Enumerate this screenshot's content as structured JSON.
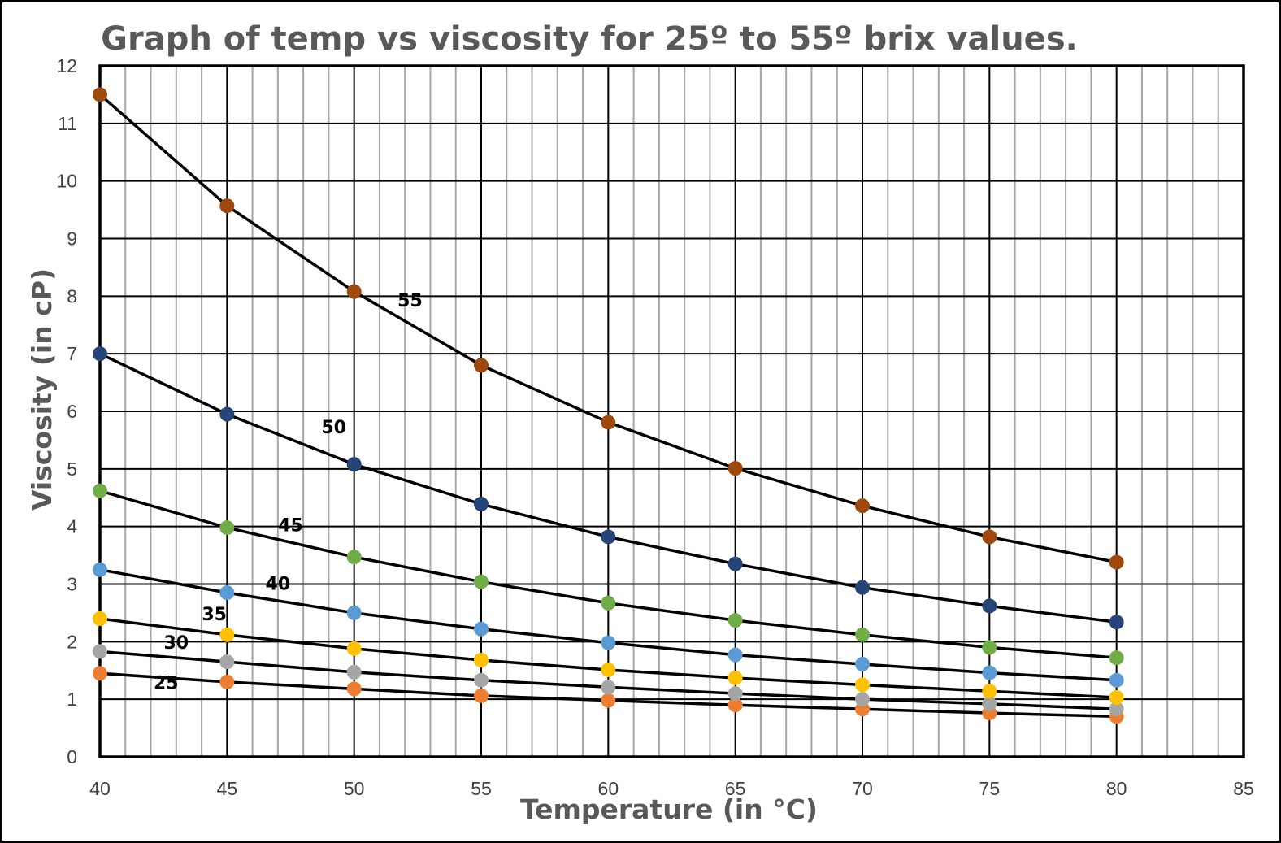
{
  "chart_data": {
    "type": "scatter",
    "title": "Graph of temp vs viscosity for 25º to 55º brix values.",
    "xlabel": "Temperature (in °C)",
    "ylabel": "Viscosity (in cP)",
    "xlim": [
      40,
      85
    ],
    "ylim": [
      0,
      12
    ],
    "x_major_ticks": [
      40,
      45,
      50,
      55,
      60,
      65,
      70,
      75,
      80,
      85
    ],
    "y_major_ticks": [
      0,
      1,
      2,
      3,
      4,
      5,
      6,
      7,
      8,
      9,
      10,
      11,
      12
    ],
    "x_minor_step": 1,
    "grid": "major and minor vertical, major horizontal",
    "legend": "none",
    "line_color": "#000000",
    "x": [
      40,
      45,
      50,
      55,
      60,
      65,
      70,
      75,
      80
    ],
    "series": [
      {
        "name": "25",
        "color": "#ed7d31",
        "values": [
          1.45,
          1.3,
          1.18,
          1.06,
          0.98,
          0.9,
          0.83,
          0.76,
          0.7
        ]
      },
      {
        "name": "30",
        "color": "#a5a5a5",
        "values": [
          1.83,
          1.65,
          1.47,
          1.33,
          1.21,
          1.1,
          1.0,
          0.92,
          0.83
        ]
      },
      {
        "name": "35",
        "color": "#ffc000",
        "values": [
          2.4,
          2.12,
          1.88,
          1.68,
          1.51,
          1.37,
          1.25,
          1.14,
          1.03
        ]
      },
      {
        "name": "40",
        "color": "#5b9bd5",
        "values": [
          3.25,
          2.85,
          2.5,
          2.22,
          1.98,
          1.77,
          1.61,
          1.46,
          1.33
        ]
      },
      {
        "name": "45",
        "color": "#70ad47",
        "values": [
          4.62,
          3.98,
          3.47,
          3.04,
          2.67,
          2.37,
          2.12,
          1.9,
          1.72
        ]
      },
      {
        "name": "50",
        "color": "#264478",
        "values": [
          7.0,
          5.95,
          5.08,
          4.39,
          3.82,
          3.35,
          2.94,
          2.62,
          2.34
        ]
      },
      {
        "name": "55",
        "color": "#9e480e",
        "values": [
          11.5,
          9.57,
          8.08,
          6.8,
          5.81,
          5.01,
          4.36,
          3.82,
          3.38
        ]
      }
    ],
    "series_labels": [
      {
        "text": "25",
        "x": 42.6,
        "y": 1.18
      },
      {
        "text": "30",
        "x": 43.0,
        "y": 1.88
      },
      {
        "text": "35",
        "x": 44.5,
        "y": 2.37
      },
      {
        "text": "40",
        "x": 47.0,
        "y": 2.9
      },
      {
        "text": "45",
        "x": 47.5,
        "y": 3.92
      },
      {
        "text": "50",
        "x": 49.2,
        "y": 5.62
      },
      {
        "text": "55",
        "x": 52.2,
        "y": 7.82
      }
    ]
  }
}
